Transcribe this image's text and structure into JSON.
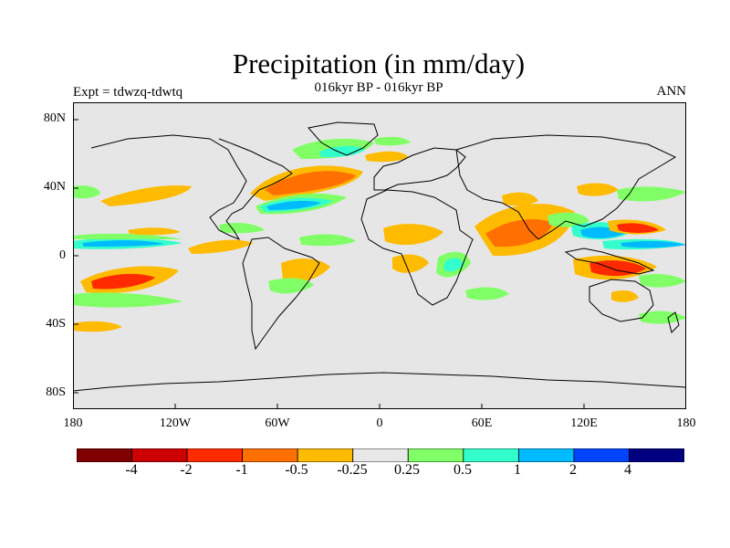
{
  "title": "Precipitation (in mm/day)",
  "subtitle": "016kyr BP - 016kyr BP",
  "expt_label": "Expt = tdwzq-tdwtq",
  "season": "ANN",
  "axes": {
    "y_ticks": [
      "80N",
      "40N",
      "0",
      "40S",
      "80S"
    ],
    "x_ticks": [
      "180",
      "120W",
      "60W",
      "0",
      "60E",
      "120E",
      "180"
    ]
  },
  "colorbar": {
    "colors": [
      "#800000",
      "#cc0000",
      "#ff2a00",
      "#ff7000",
      "#ffbb00",
      "#e8e8e8",
      "#80ff66",
      "#33ffcc",
      "#00bbff",
      "#0044ff",
      "#000080"
    ],
    "labels": [
      "-4",
      "-2",
      "-1",
      "-0.5",
      "-0.25",
      "0.25",
      "0.5",
      "1",
      "2",
      "4"
    ]
  },
  "map_background": "#e6e6e6",
  "coastline_color": "#000000"
}
